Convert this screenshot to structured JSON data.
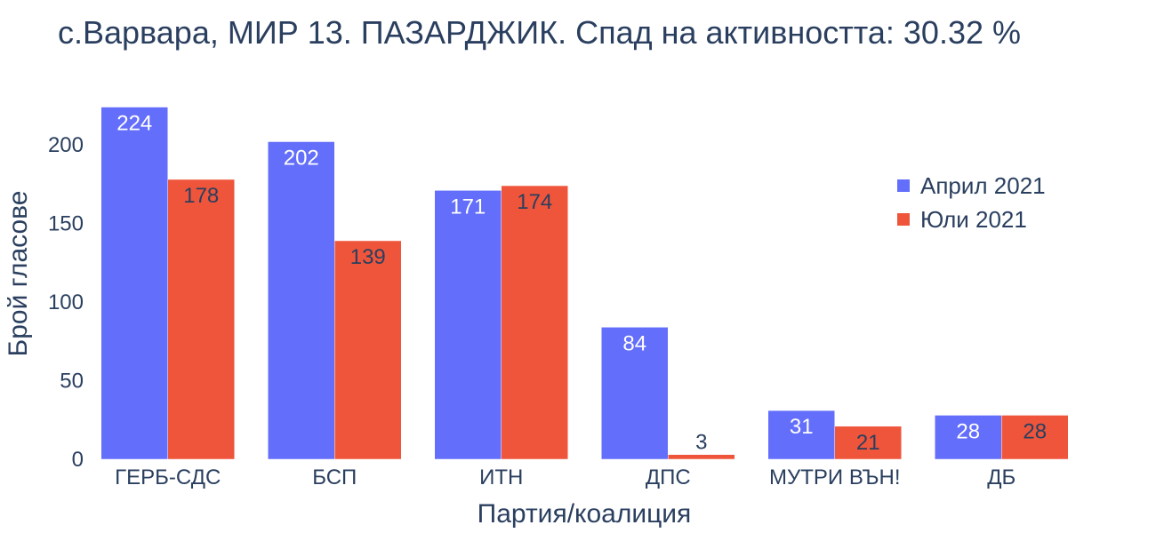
{
  "chart_data": {
    "type": "bar",
    "title": "с.Варвара, МИР 13. ПАЗАРДЖИК. Спад на активността: 30.32 %",
    "xlabel": "Партия/коалиция",
    "ylabel": "Брой гласове",
    "categories": [
      "ГЕРБ-СДС",
      "БСП",
      "ИТН",
      "ДПС",
      "МУТРИ ВЪН!",
      "ДБ"
    ],
    "series": [
      {
        "name": "Април 2021",
        "color": "#636efa",
        "values": [
          224,
          202,
          171,
          84,
          31,
          28
        ]
      },
      {
        "name": "Юли 2021",
        "color": "#ef553b",
        "values": [
          178,
          139,
          174,
          3,
          21,
          28
        ]
      }
    ],
    "ylim": [
      0,
      226
    ],
    "yticks": [
      0,
      50,
      100,
      150,
      200
    ],
    "grid": false,
    "legend": "top-right"
  }
}
